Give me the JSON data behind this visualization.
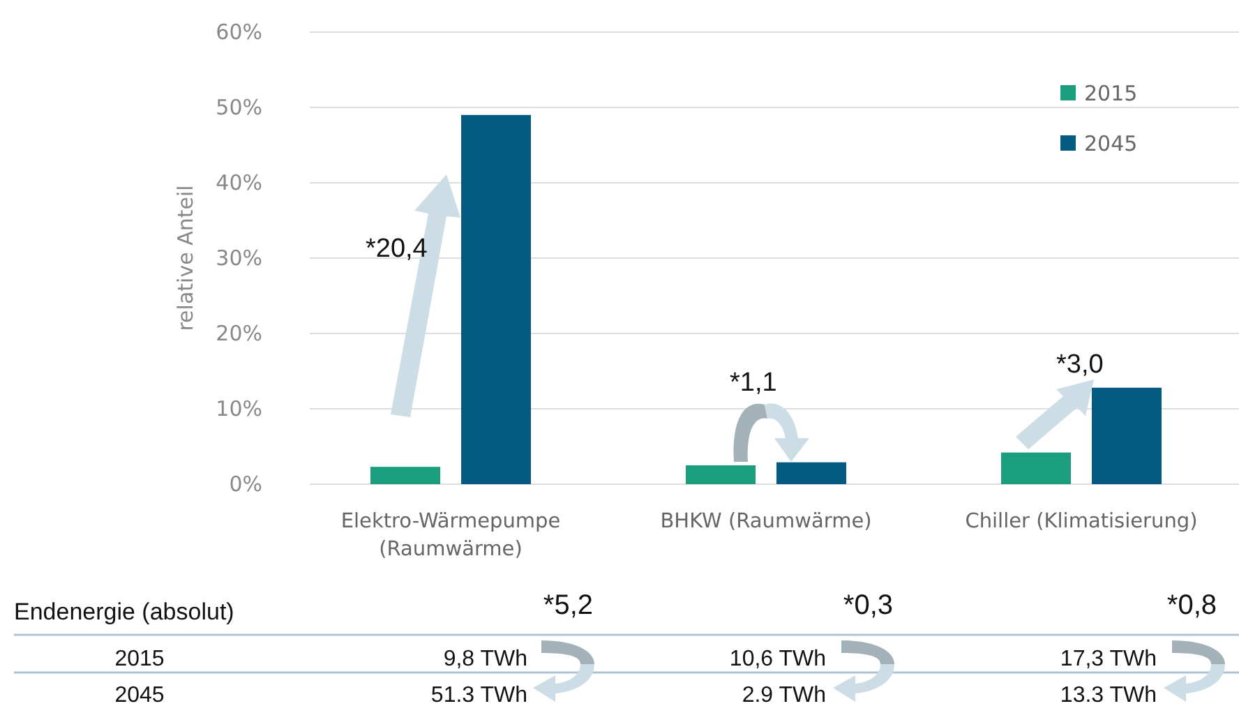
{
  "chart_data": {
    "type": "bar",
    "ylabel": "relative Anteil",
    "categories": [
      "Elektro-Wärmepumpe (Raumwärme)",
      "BHKW (Raumwärme)",
      "Chiller (Klimatisierung)"
    ],
    "series": [
      {
        "name": "2015",
        "color": "#1a9e7e",
        "values": [
          2.3,
          2.5,
          4.2
        ]
      },
      {
        "name": "2045",
        "color": "#045a80",
        "values": [
          49,
          2.9,
          12.8
        ]
      }
    ],
    "ylim": [
      0,
      60
    ],
    "yticks": [
      {
        "value": 0,
        "label": "0%"
      },
      {
        "value": 10,
        "label": "10%"
      },
      {
        "value": 20,
        "label": "20%"
      },
      {
        "value": 30,
        "label": "30%"
      },
      {
        "value": 40,
        "label": "40%"
      },
      {
        "value": 50,
        "label": "50%"
      },
      {
        "value": 60,
        "label": "60%"
      }
    ],
    "grid": "y",
    "legend": "top right",
    "annotations": [
      "*20,4",
      "*1,1",
      "*3,0",
      "Endenergie (absolut)",
      "*5,2",
      "*0,3",
      "*0,8",
      "2015",
      "9,8 TWh",
      "10,6 TWh",
      "17,3 TWh",
      "2045",
      "51.3 TWh",
      "2.9 TWh",
      "13.3 TWh"
    ]
  }
}
